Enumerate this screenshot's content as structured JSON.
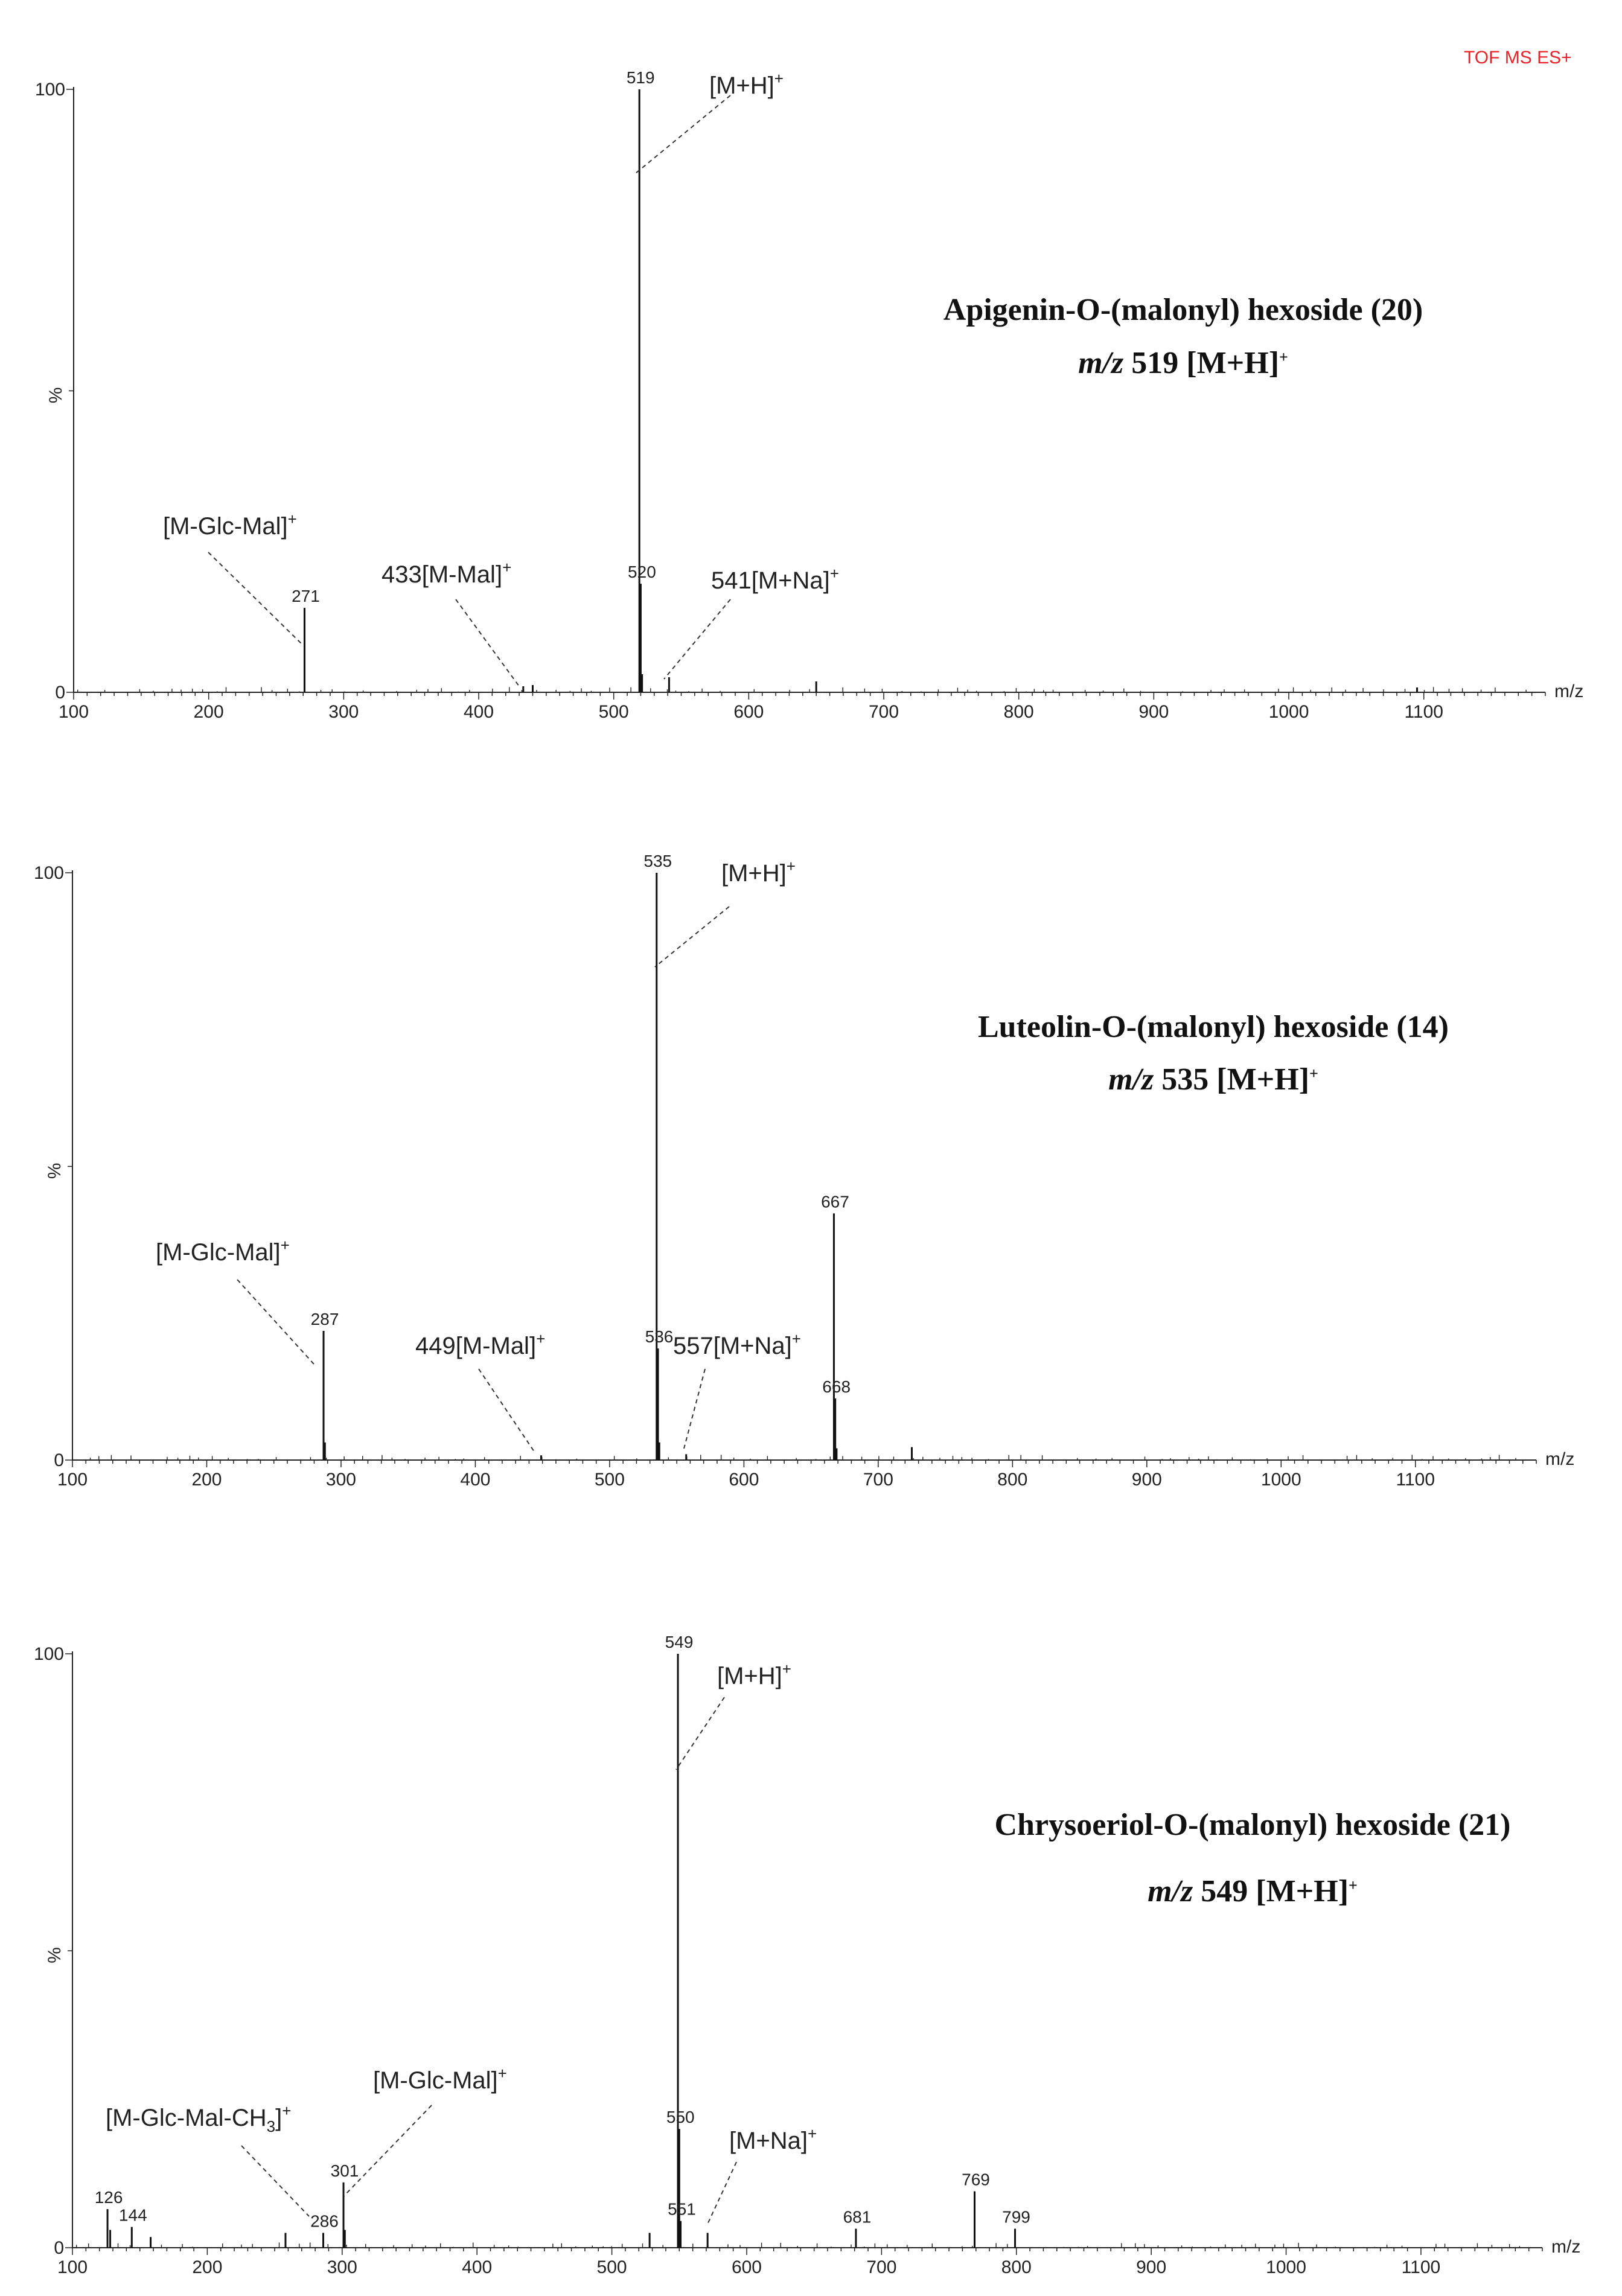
{
  "header": {
    "mode": "TOF MS ES+"
  },
  "chart_data": [
    {
      "type": "bar",
      "title": "Apigenin-O-(malonyl) hexoside (20)",
      "subtitle_mz": "m/z",
      "subtitle_value": "519 [M+H]",
      "subtitle_sup": "+",
      "xlabel": "m/z",
      "ylabel": "%",
      "xlim": [
        100,
        1190
      ],
      "ylim": [
        0,
        100
      ],
      "xticks": [
        100,
        200,
        300,
        400,
        500,
        600,
        700,
        800,
        900,
        1000,
        1100
      ],
      "yticks": [
        0,
        100
      ],
      "peaks": [
        {
          "mz": 271,
          "intensity": 14,
          "label": "271"
        },
        {
          "mz": 433,
          "intensity": 1,
          "label": ""
        },
        {
          "mz": 440,
          "intensity": 1.2,
          "label": ""
        },
        {
          "mz": 519,
          "intensity": 100,
          "label": "519"
        },
        {
          "mz": 520,
          "intensity": 18,
          "label": "520"
        },
        {
          "mz": 521,
          "intensity": 3,
          "label": ""
        },
        {
          "mz": 541,
          "intensity": 2.5,
          "label": ""
        },
        {
          "mz": 650,
          "intensity": 1.8,
          "label": ""
        },
        {
          "mz": 1095,
          "intensity": 0.8,
          "label": ""
        }
      ],
      "annotations": [
        {
          "text": "[M-Glc-Mal]",
          "sup": "+",
          "mz": 271
        },
        {
          "text": "433[M-Mal]",
          "sup": "+",
          "mz": 433
        },
        {
          "text": "[M+H]",
          "sup": "+",
          "mz": 519
        },
        {
          "text": "541[M+Na]",
          "sup": "+",
          "mz": 541
        }
      ]
    },
    {
      "type": "bar",
      "title": "Luteolin-O-(malonyl) hexoside (14)",
      "subtitle_mz": "m/z",
      "subtitle_value": "535 [M+H]",
      "subtitle_sup": "+",
      "xlabel": "m/z",
      "ylabel": "%",
      "xlim": [
        100,
        1190
      ],
      "ylim": [
        0,
        100
      ],
      "xticks": [
        100,
        200,
        300,
        400,
        500,
        600,
        700,
        800,
        900,
        1000,
        1100
      ],
      "yticks": [
        0,
        100
      ],
      "peaks": [
        {
          "mz": 287,
          "intensity": 22,
          "label": "287"
        },
        {
          "mz": 288,
          "intensity": 3,
          "label": ""
        },
        {
          "mz": 449,
          "intensity": 0.8,
          "label": ""
        },
        {
          "mz": 535,
          "intensity": 100,
          "label": "535"
        },
        {
          "mz": 536,
          "intensity": 19,
          "label": "536"
        },
        {
          "mz": 537,
          "intensity": 3,
          "label": ""
        },
        {
          "mz": 557,
          "intensity": 1,
          "label": ""
        },
        {
          "mz": 667,
          "intensity": 42,
          "label": "667"
        },
        {
          "mz": 668,
          "intensity": 10.5,
          "label": "668"
        },
        {
          "mz": 669,
          "intensity": 2,
          "label": ""
        },
        {
          "mz": 725,
          "intensity": 2.2,
          "label": ""
        }
      ],
      "annotations": [
        {
          "text": "[M-Glc-Mal]",
          "sup": "+",
          "mz": 287
        },
        {
          "text": "449[M-Mal]",
          "sup": "+",
          "mz": 449
        },
        {
          "text": "[M+H]",
          "sup": "+",
          "mz": 535
        },
        {
          "text": "557[M+Na]",
          "sup": "+",
          "mz": 557
        }
      ]
    },
    {
      "type": "bar",
      "title": "Chrysoeriol-O-(malonyl) hexoside (21)",
      "subtitle_mz": "m/z",
      "subtitle_value": "549 [M+H]",
      "subtitle_sup": "+",
      "xlabel": "m/z",
      "ylabel": "%",
      "xlim": [
        100,
        1190
      ],
      "ylim": [
        0,
        100
      ],
      "xticks": [
        100,
        200,
        300,
        400,
        500,
        600,
        700,
        800,
        900,
        1000,
        1100
      ],
      "yticks": [
        0,
        100
      ],
      "peaks": [
        {
          "mz": 126,
          "intensity": 6.5,
          "label": "126"
        },
        {
          "mz": 128,
          "intensity": 3,
          "label": ""
        },
        {
          "mz": 144,
          "intensity": 3.5,
          "label": "144"
        },
        {
          "mz": 158,
          "intensity": 1.8,
          "label": ""
        },
        {
          "mz": 258,
          "intensity": 2.5,
          "label": ""
        },
        {
          "mz": 286,
          "intensity": 2.5,
          "label": "286"
        },
        {
          "mz": 301,
          "intensity": 11,
          "label": "301"
        },
        {
          "mz": 302,
          "intensity": 3,
          "label": ""
        },
        {
          "mz": 528,
          "intensity": 2.5,
          "label": ""
        },
        {
          "mz": 549,
          "intensity": 100,
          "label": "549"
        },
        {
          "mz": 550,
          "intensity": 20,
          "label": "550"
        },
        {
          "mz": 551,
          "intensity": 4.5,
          "label": "551"
        },
        {
          "mz": 571,
          "intensity": 2.5,
          "label": ""
        },
        {
          "mz": 681,
          "intensity": 3.2,
          "label": "681"
        },
        {
          "mz": 769,
          "intensity": 9.5,
          "label": "769"
        },
        {
          "mz": 799,
          "intensity": 3.2,
          "label": "799"
        }
      ],
      "annotations": [
        {
          "text": "[M-Glc-Mal-CH",
          "sub": "3",
          "after": "]",
          "sup": "+",
          "mz": 286
        },
        {
          "text": "[M-Glc-Mal]",
          "sup": "+",
          "mz": 301
        },
        {
          "text": "[M+H]",
          "sup": "+",
          "mz": 549
        },
        {
          "text": "[M+Na]",
          "sup": "+",
          "mz": 571
        }
      ]
    }
  ]
}
